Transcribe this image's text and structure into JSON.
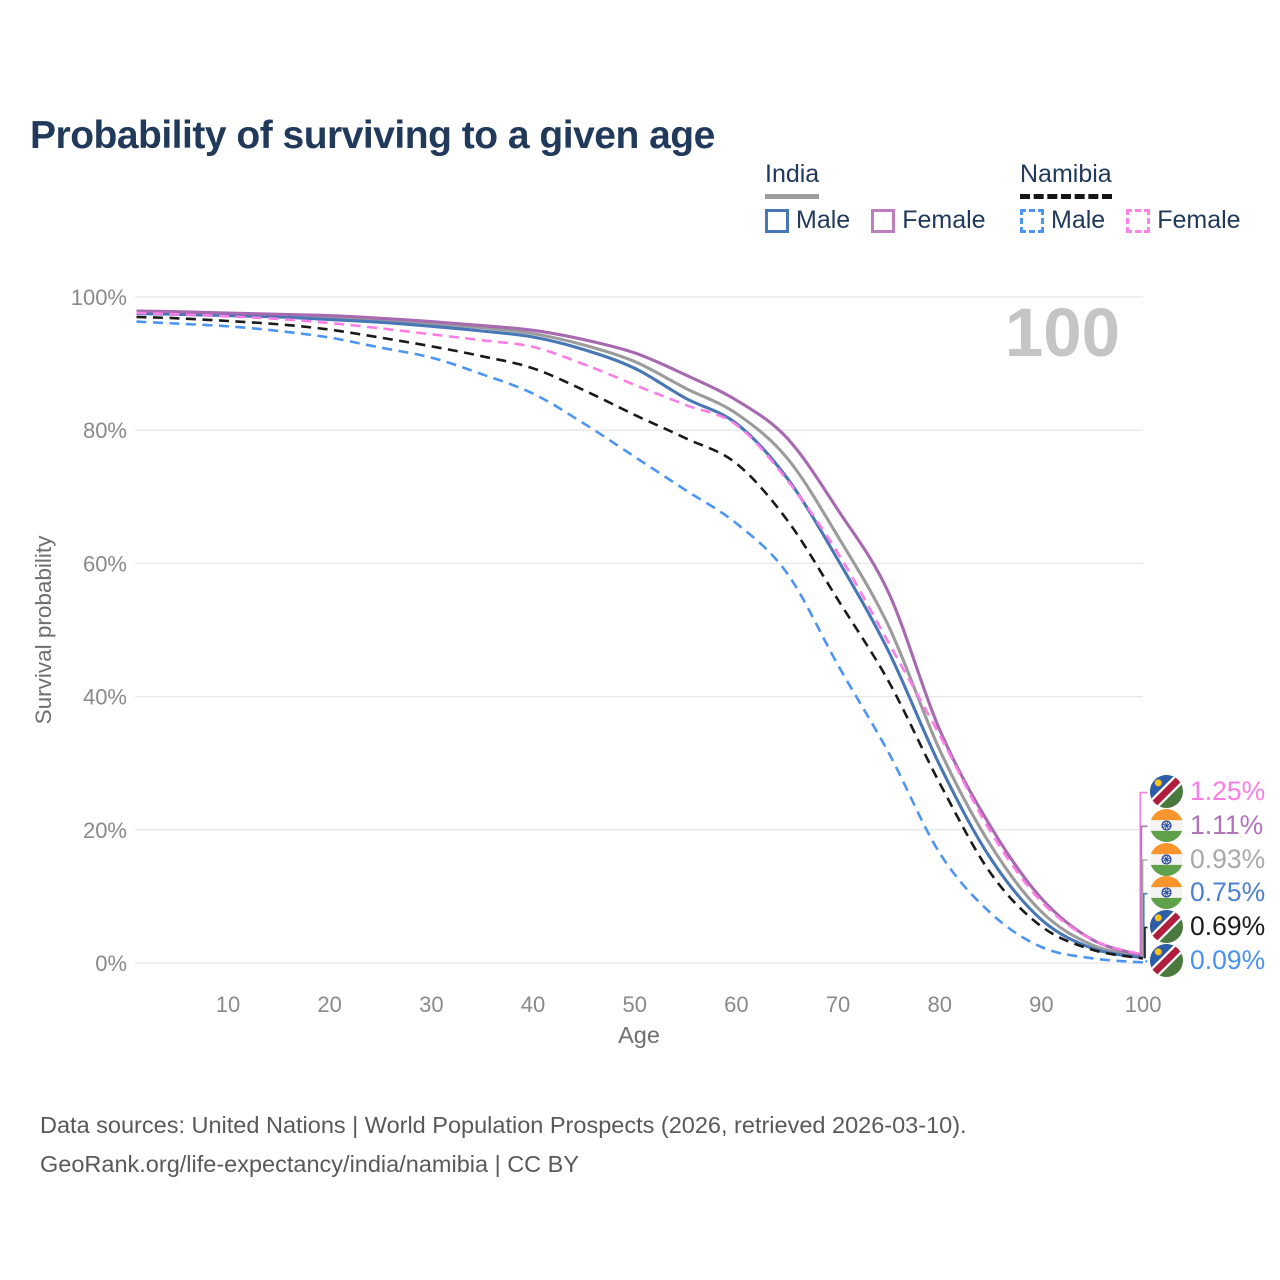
{
  "header": {
    "title": "Probability of surviving to a given age"
  },
  "legend": {
    "groups": [
      {
        "label": "India",
        "underline_color": "#9e9e9e",
        "underline_style": "solid",
        "items": [
          {
            "label": "Male",
            "color": "#4877b6",
            "line_style": "solid"
          },
          {
            "label": "Female",
            "color": "#bd7fc0",
            "line_style": "solid"
          }
        ]
      },
      {
        "label": "Namibia",
        "underline_color": "#151515",
        "underline_style": "dashed",
        "items": [
          {
            "label": "Male",
            "color": "#4d95f2",
            "line_style": "dashed"
          },
          {
            "label": "Female",
            "color": "#fc84e9",
            "line_style": "dashed"
          }
        ]
      }
    ]
  },
  "watermark": {
    "text": "100",
    "color": "#c5c5c5"
  },
  "chart_data": {
    "type": "line",
    "title": "Probability of surviving to a given age",
    "xlabel": "Age",
    "ylabel": "Survival probability",
    "xlim": [
      1,
      100
    ],
    "ylim": [
      0,
      100
    ],
    "grid": "horizontal-only",
    "gridline_color": "#e7e7e7",
    "tick_label_color": "#8a8a8a",
    "xticks": [
      {
        "value": 10,
        "label": "10"
      },
      {
        "value": 20,
        "label": "20"
      },
      {
        "value": 30,
        "label": "30"
      },
      {
        "value": 40,
        "label": "40"
      },
      {
        "value": 50,
        "label": "50"
      },
      {
        "value": 60,
        "label": "60"
      },
      {
        "value": 70,
        "label": "70"
      },
      {
        "value": 80,
        "label": "80"
      },
      {
        "value": 90,
        "label": "90"
      },
      {
        "value": 100,
        "label": "100"
      }
    ],
    "yticks": [
      {
        "value": 0,
        "label": "0%"
      },
      {
        "value": 20,
        "label": "20%"
      },
      {
        "value": 40,
        "label": "40%"
      },
      {
        "value": 60,
        "label": "60%"
      },
      {
        "value": 80,
        "label": "80%"
      },
      {
        "value": 100,
        "label": "100%"
      }
    ],
    "x": [
      1,
      5,
      10,
      15,
      20,
      25,
      30,
      35,
      40,
      45,
      50,
      55,
      60,
      65,
      70,
      75,
      80,
      85,
      90,
      95,
      100
    ],
    "series": [
      {
        "name": "India (both sexes)",
        "country": "India",
        "sex": "Both",
        "flag": "india",
        "color": "#9b9b9b",
        "line_style": "solid",
        "values": [
          97.7,
          97.6,
          97.4,
          97.2,
          96.9,
          96.5,
          96.0,
          95.4,
          94.5,
          92.8,
          90.3,
          86.3,
          82.5,
          75.8,
          64.0,
          50.5,
          32.0,
          17.7,
          7.7,
          2.7,
          0.93
        ],
        "end_label": "0.93%",
        "end_label_color": "#a9a9a9"
      },
      {
        "name": "India Male",
        "country": "India",
        "sex": "Male",
        "flag": "india",
        "color": "#4877b6",
        "line_style": "solid",
        "values": [
          97.5,
          97.4,
          97.2,
          97.0,
          96.6,
          96.2,
          95.6,
          94.9,
          94.0,
          92.1,
          89.3,
          84.8,
          81.0,
          72.8,
          60.5,
          46.7,
          29.7,
          15.7,
          6.5,
          2.2,
          0.75
        ],
        "end_label": "0.75%",
        "end_label_color": "#4c81cd"
      },
      {
        "name": "India Female",
        "country": "India",
        "sex": "Female",
        "flag": "india",
        "color": "#a76ab0",
        "line_style": "solid",
        "values": [
          97.9,
          97.8,
          97.6,
          97.4,
          97.2,
          96.8,
          96.3,
          95.7,
          95.0,
          93.6,
          91.6,
          88.3,
          84.5,
          78.8,
          68.0,
          55.5,
          35.0,
          20.5,
          9.7,
          3.5,
          1.11
        ],
        "end_label": "1.11%",
        "end_label_color": "#b273bd"
      },
      {
        "name": "Namibia (both sexes)",
        "country": "Namibia",
        "sex": "Both",
        "flag": "namibia",
        "color": "#1a1a1a",
        "line_style": "dashed",
        "values": [
          97.0,
          96.8,
          96.4,
          95.9,
          95.1,
          93.9,
          92.6,
          91.1,
          89.3,
          86.0,
          82.3,
          78.8,
          75.0,
          66.5,
          54.5,
          42.2,
          27.0,
          13.5,
          5.5,
          2.0,
          0.69
        ],
        "end_label": "0.69%",
        "end_label_color": "#1c1c1c"
      },
      {
        "name": "Namibia Male",
        "country": "Namibia",
        "sex": "Male",
        "flag": "namibia",
        "color": "#4d95f2",
        "line_style": "dashed",
        "values": [
          96.3,
          96.0,
          95.6,
          94.9,
          93.9,
          92.4,
          90.9,
          88.4,
          85.5,
          81.0,
          76.0,
          71.0,
          66.0,
          58.5,
          44.7,
          31.5,
          16.5,
          7.5,
          2.4,
          0.7,
          0.09
        ],
        "end_label": "0.09%",
        "end_label_color": "#4793ef"
      },
      {
        "name": "Namibia Female",
        "country": "Namibia",
        "sex": "Female",
        "flag": "namibia",
        "color": "#fc7de6",
        "line_style": "dashed",
        "values": [
          97.6,
          97.4,
          97.1,
          96.7,
          96.1,
          95.3,
          94.4,
          93.5,
          92.5,
          89.9,
          86.8,
          83.8,
          80.8,
          72.5,
          61.5,
          48.0,
          34.2,
          19.7,
          9.2,
          3.5,
          1.25
        ],
        "end_label": "1.25%",
        "end_label_color": "#fb7ce2"
      }
    ]
  },
  "footer": {
    "lines": [
      "Data sources: United Nations | World Population Prospects (2026, retrieved 2026-03-10).",
      "GeoRank.org/life-expectancy/india/namibia | CC BY"
    ]
  }
}
